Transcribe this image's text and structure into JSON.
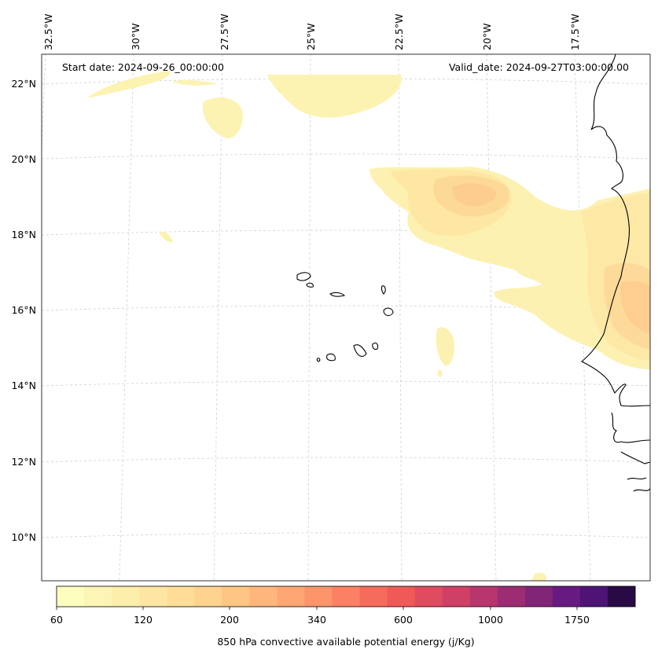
{
  "map": {
    "start_label": "Start date: 2024-09-26_00:00:00",
    "valid_label": "Valid_date: 2024-09-27T03:00:00.00",
    "lon_labels": [
      "32.5°W",
      "30°W",
      "27.5°W",
      "25°W",
      "22.5°W",
      "20°W",
      "17.5°W"
    ],
    "lat_labels": [
      "22°N",
      "20°N",
      "18°N",
      "16°N",
      "14°N",
      "12°N",
      "10°N"
    ]
  },
  "colorbar": {
    "label": "850 hPa convective available potential energy (j/Kg)",
    "tick_labels": [
      "60",
      "120",
      "200",
      "340",
      "600",
      "1000",
      "1750"
    ],
    "colors": [
      "#fcfdbf",
      "#fcf5b5",
      "#fdeeab",
      "#fde6a2",
      "#fedd98",
      "#fed28f",
      "#fec585",
      "#feb67c",
      "#fea674",
      "#fd946c",
      "#fb8064",
      "#f66c5c",
      "#ef5a59",
      "#e14b5f",
      "#d03f66",
      "#b8356d",
      "#9c2d73",
      "#812577",
      "#671b80",
      "#4d1475",
      "#2a0a44"
    ]
  }
}
